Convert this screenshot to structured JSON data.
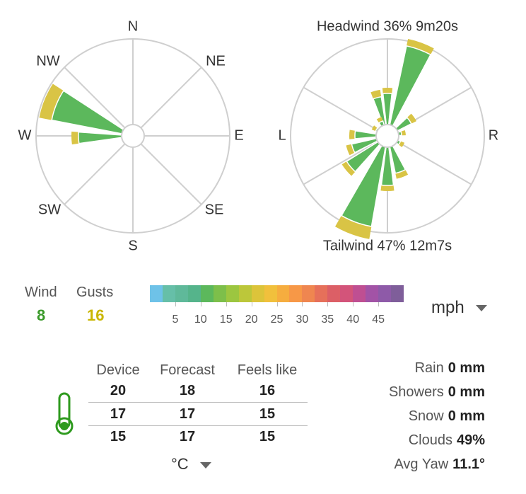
{
  "left_rose": {
    "directions": {
      "n": "N",
      "ne": "NE",
      "e": "E",
      "se": "SE",
      "s": "S",
      "sw": "SW",
      "w": "W",
      "nw": "NW"
    }
  },
  "right_rose": {
    "headwind": "Headwind 36% 9m20s",
    "tailwind": "Tailwind 47% 12m7s",
    "left": "L",
    "right": "R"
  },
  "wind": {
    "label": "Wind",
    "value": "8",
    "color": "#3a9a2a"
  },
  "gusts": {
    "label": "Gusts",
    "value": "16",
    "color": "#c9b600"
  },
  "scale": {
    "ticks": [
      "5",
      "10",
      "15",
      "20",
      "25",
      "30",
      "35",
      "40",
      "45"
    ],
    "colors": [
      "#6ec2e8",
      "#66bfa8",
      "#5fb99a",
      "#55b48b",
      "#5cb85c",
      "#7dbf4a",
      "#9cc640",
      "#bcc73a",
      "#dcc43a",
      "#f1c03c",
      "#f6ad3f",
      "#f79847",
      "#ef8650",
      "#e6705a",
      "#dc5f66",
      "#d3547a",
      "#bf4f92",
      "#a253a6",
      "#8e5aa8",
      "#7f5e9a"
    ]
  },
  "units": {
    "speed": "mph",
    "temp": "°C"
  },
  "temps": {
    "headers": [
      "Device",
      "Forecast",
      "Feels like"
    ],
    "rows": [
      [
        "20",
        "18",
        "16"
      ],
      [
        "17",
        "17",
        "15"
      ],
      [
        "15",
        "17",
        "15"
      ]
    ]
  },
  "stats": [
    {
      "label": "Rain",
      "value": "0 mm"
    },
    {
      "label": "Showers",
      "value": "0 mm"
    },
    {
      "label": "Snow",
      "value": "0 mm"
    },
    {
      "label": "Clouds",
      "value": "49%"
    },
    {
      "label": "Avg Yaw",
      "value": "11.1°"
    }
  ],
  "icons": {
    "thermometer": "thermometer-icon",
    "units_dropdown": "caret-down-icon"
  }
}
